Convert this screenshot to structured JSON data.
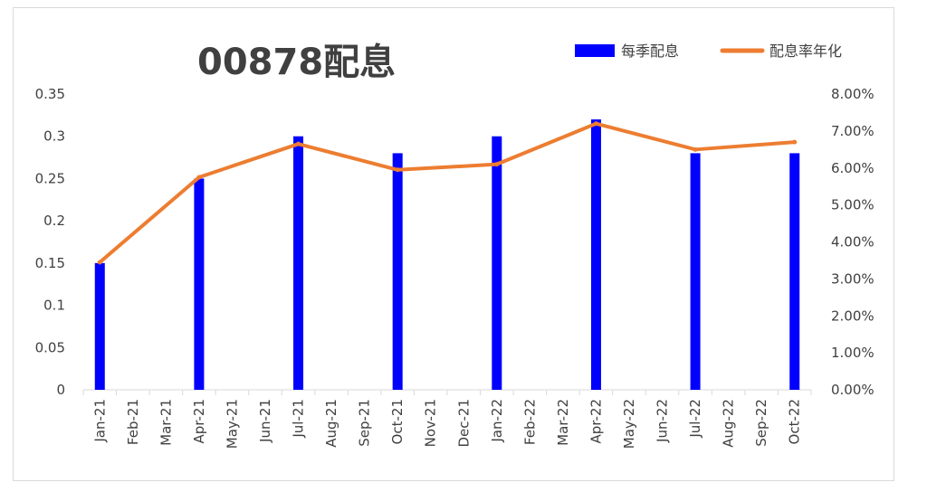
{
  "chart_data": {
    "type": "bar+line",
    "title": "00878配息",
    "categories": [
      "Jan-21",
      "Feb-21",
      "Mar-21",
      "Apr-21",
      "May-21",
      "Jun-21",
      "Jul-21",
      "Aug-21",
      "Sep-21",
      "Oct-21",
      "Nov-21",
      "Dec-21",
      "Jan-22",
      "Feb-22",
      "Mar-22",
      "Apr-22",
      "May-22",
      "Jun-22",
      "Jul-22",
      "Aug-22",
      "Sep-22",
      "Oct-22"
    ],
    "series": [
      {
        "name": "每季配息",
        "type": "bar",
        "axis": "left",
        "color": "#0000ff",
        "values": [
          0.15,
          null,
          null,
          0.25,
          null,
          null,
          0.3,
          null,
          null,
          0.28,
          null,
          null,
          0.3,
          null,
          null,
          0.32,
          null,
          null,
          0.28,
          null,
          null,
          0.28
        ]
      },
      {
        "name": "配息率年化",
        "type": "line",
        "axis": "right",
        "color": "#ed7d31",
        "x": [
          "Jan-21",
          "Apr-21",
          "Jul-21",
          "Oct-21",
          "Jan-22",
          "Apr-22",
          "Jul-22",
          "Oct-22"
        ],
        "values": [
          3.45,
          5.75,
          6.65,
          5.95,
          6.1,
          7.2,
          6.5,
          6.7
        ]
      }
    ],
    "y_left": {
      "min": 0,
      "max": 0.35,
      "ticks": [
        "0",
        "0.05",
        "0.1",
        "0.15",
        "0.2",
        "0.25",
        "0.3",
        "0.35"
      ]
    },
    "y_right": {
      "min": 0,
      "max": 8,
      "ticks": [
        "0.00%",
        "1.00%",
        "2.00%",
        "3.00%",
        "4.00%",
        "5.00%",
        "6.00%",
        "7.00%",
        "8.00%"
      ]
    },
    "legend_position": "top-right",
    "grid": false
  }
}
